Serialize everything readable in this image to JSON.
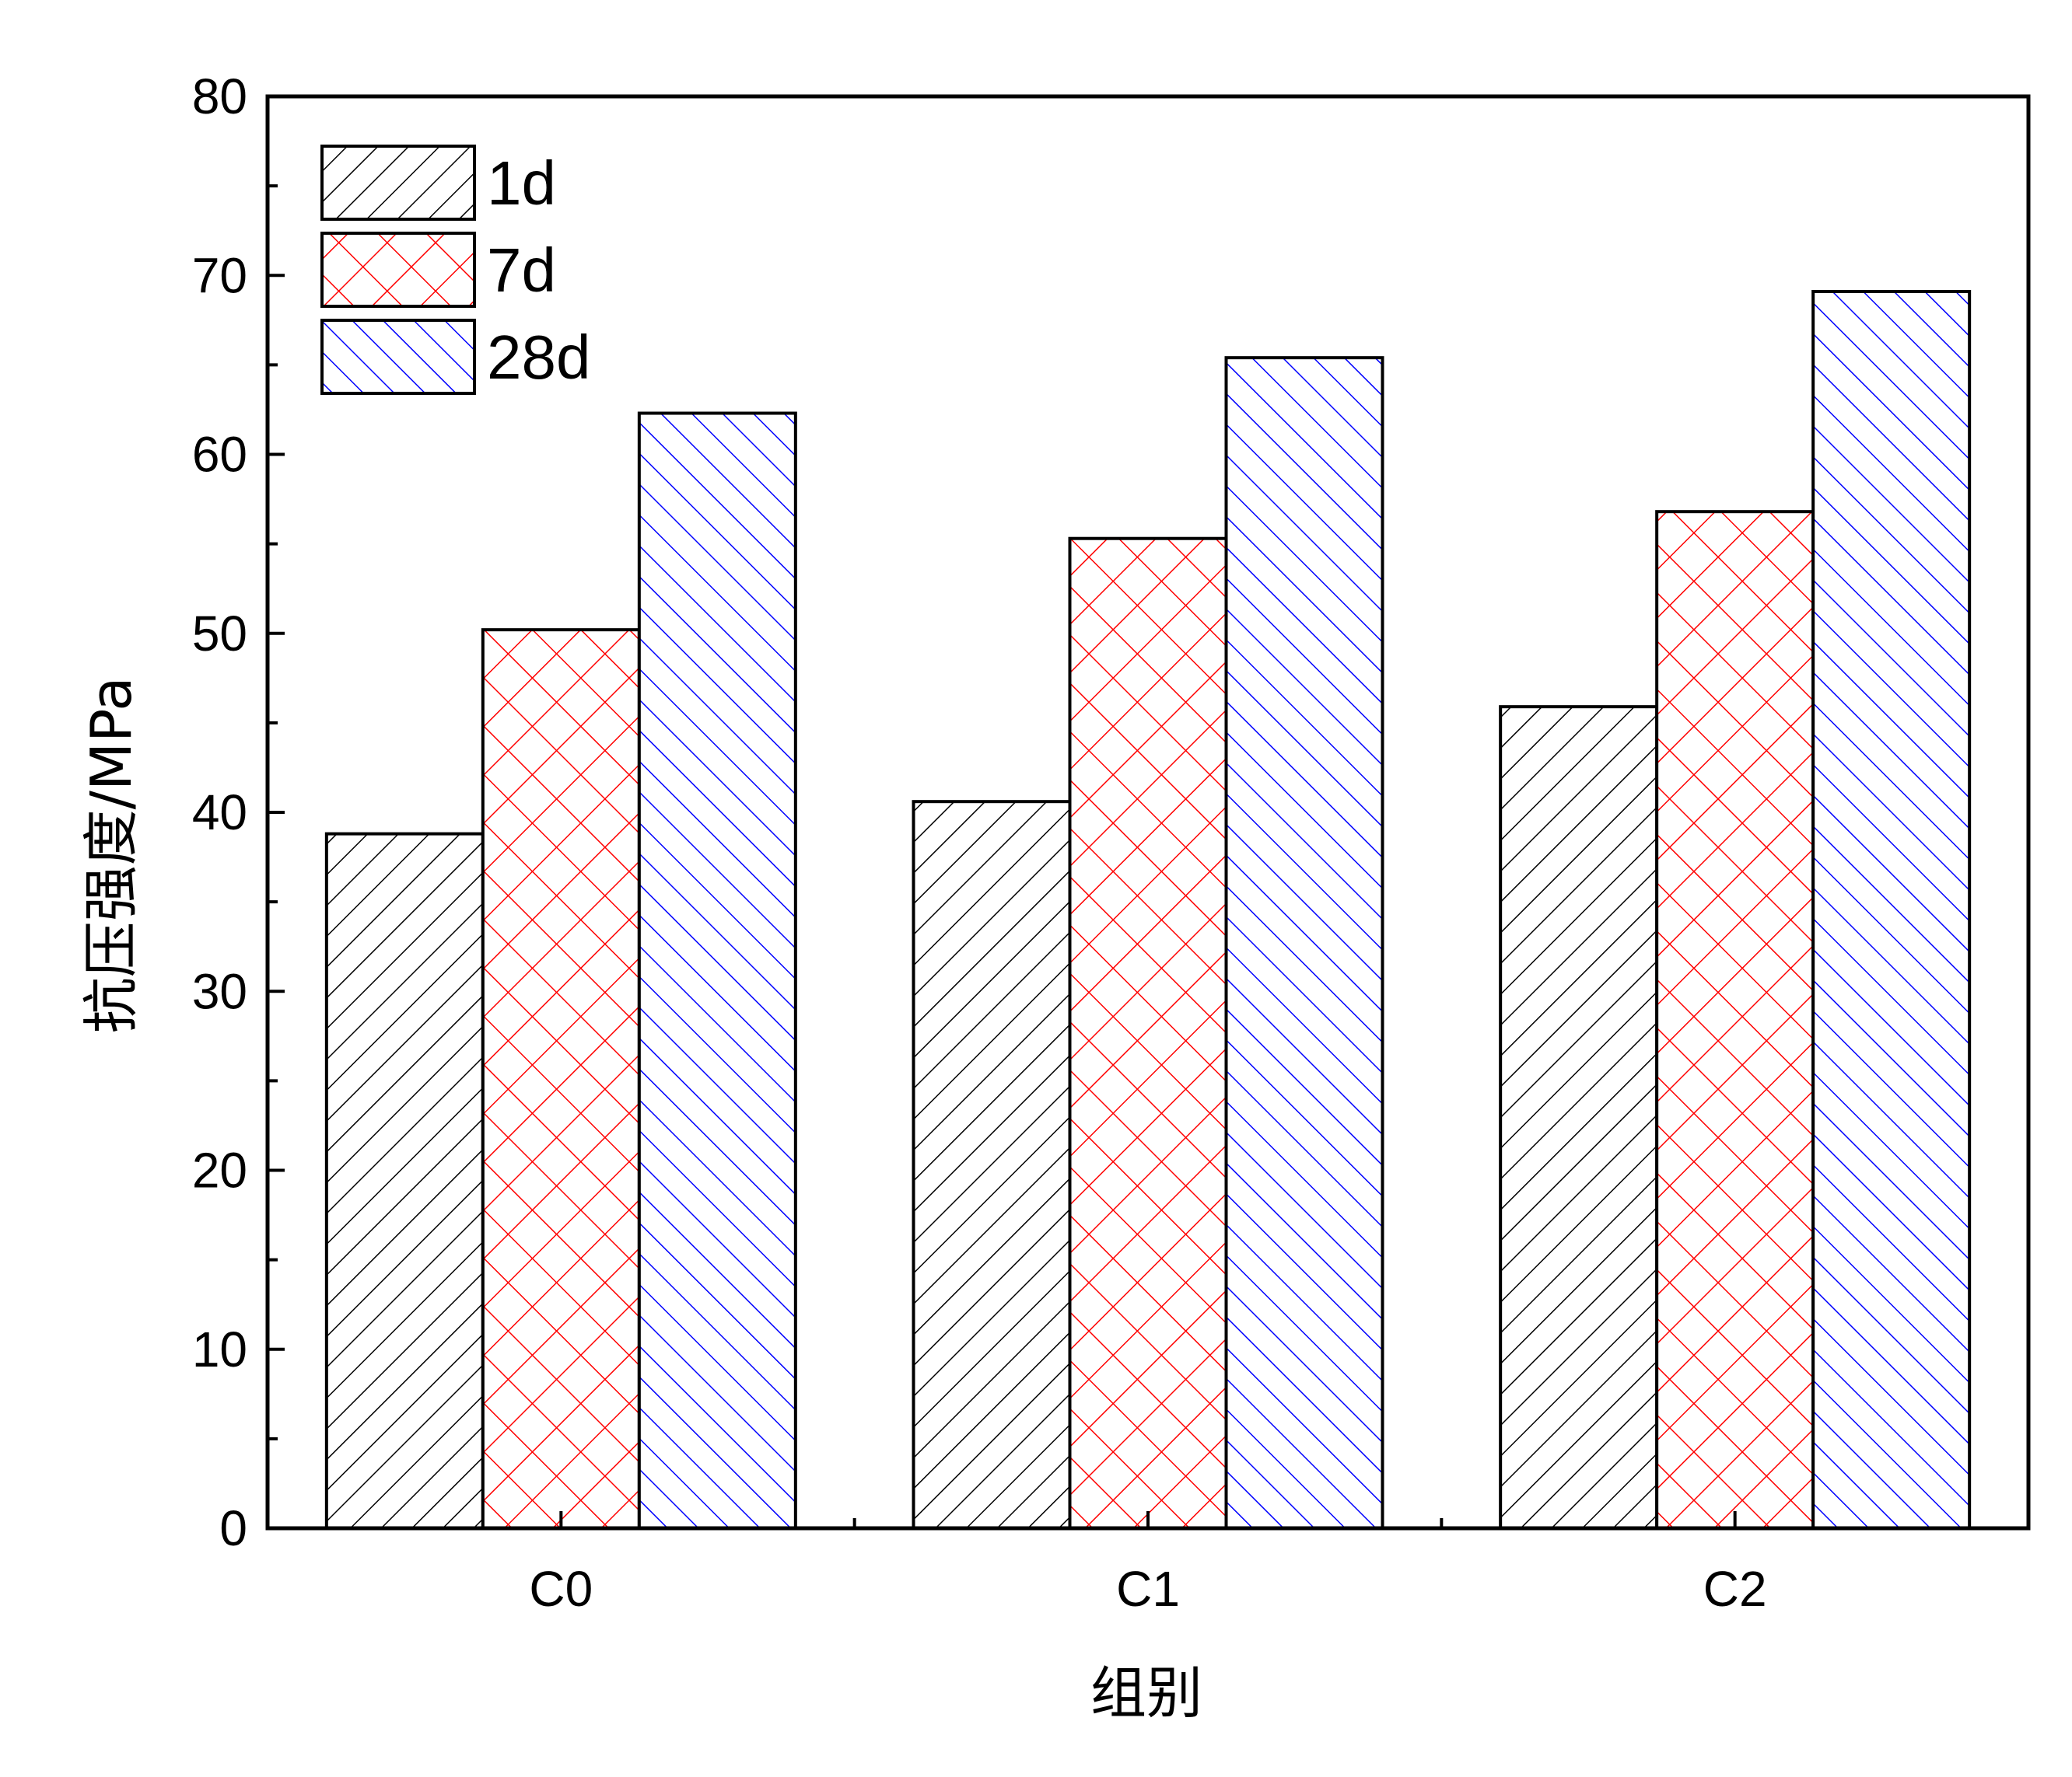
{
  "chart_data": {
    "type": "bar",
    "xlabel": "组别",
    "ylabel": "抗压强度/MPa",
    "categories": [
      "C0",
      "C1",
      "C2"
    ],
    "series": [
      {
        "name": "1d",
        "values": [
          38.8,
          40.6,
          45.9
        ],
        "color": "#000000",
        "pattern": "diagonal-forward"
      },
      {
        "name": "7d",
        "values": [
          50.2,
          55.3,
          56.8
        ],
        "color": "#ff0000",
        "pattern": "crosshatch"
      },
      {
        "name": "28d",
        "values": [
          62.3,
          65.4,
          69.1
        ],
        "color": "#0000ff",
        "pattern": "diagonal-backward"
      }
    ],
    "ylim": [
      0,
      80
    ],
    "yticks": [
      "0",
      "10",
      "20",
      "30",
      "40",
      "50",
      "60",
      "70",
      "80"
    ],
    "grid": false,
    "legend_position": "top-left"
  }
}
